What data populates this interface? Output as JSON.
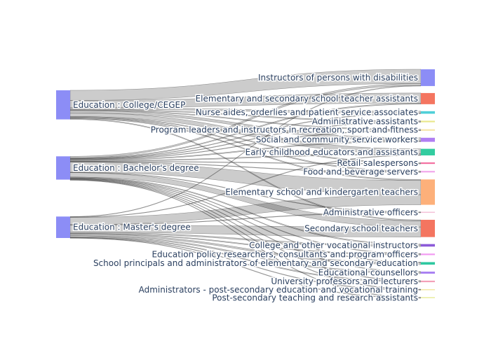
{
  "chart_data": {
    "type": "sankey",
    "link_color": "rgba(0,0,0,0.2)",
    "sources": [
      {
        "id": "src-college",
        "label": "Education : College/CEGEP",
        "color": "#8c8df6"
      },
      {
        "id": "src-bachelor",
        "label": "Education : Bachelor's degree",
        "color": "#8c8df6"
      },
      {
        "id": "src-master",
        "label": "Education : Master's degree",
        "color": "#8c8df6"
      }
    ],
    "targets": [
      {
        "id": "tgt-disabilities",
        "label": "Instructors of persons with disabilities",
        "color": "#8c8df6"
      },
      {
        "id": "tgt-teacher-assistants",
        "label": "Elementary and secondary school teacher assistants",
        "color": "#f47560"
      },
      {
        "id": "tgt-nurse-aides",
        "label": "Nurse aides, orderlies and patient service associates",
        "color": "#4fd0d8"
      },
      {
        "id": "tgt-admin-assistants",
        "label": "Administrative assistants",
        "color": "#e9e88c"
      },
      {
        "id": "tgt-program-leaders",
        "label": "Program leaders and instructors in recreation, sport and fitness",
        "color": "#f5e6a8"
      },
      {
        "id": "tgt-social-workers",
        "label": "Social and community service workers",
        "color": "#b07ff2"
      },
      {
        "id": "tgt-early-childhood",
        "label": "Early childhood educators and assistants",
        "color": "#33cca0"
      },
      {
        "id": "tgt-retail",
        "label": "Retail salespersons",
        "color": "#f46fa0"
      },
      {
        "id": "tgt-food-servers",
        "label": "Food and beverage servers",
        "color": "#f2a8ec"
      },
      {
        "id": "tgt-elementary-teachers",
        "label": "Elementary school and kindergarten teachers",
        "color": "#fdb07a"
      },
      {
        "id": "tgt-admin-officers",
        "label": "Administrative officers",
        "color": "#f4c0d8"
      },
      {
        "id": "tgt-secondary-teachers",
        "label": "Secondary school teachers",
        "color": "#f47560"
      },
      {
        "id": "tgt-vocational-instructors",
        "label": "College and other vocational instructors",
        "color": "#8c5ad8"
      },
      {
        "id": "tgt-policy-researchers",
        "label": "Education policy researchers, consultants and program officers",
        "color": "#f29af2"
      },
      {
        "id": "tgt-principals",
        "label": "School principals and administrators of elementary and secondary education",
        "color": "#2fc8a0"
      },
      {
        "id": "tgt-counsellors",
        "label": "Educational counsellors",
        "color": "#a87ff2"
      },
      {
        "id": "tgt-professors",
        "label": "University professors and lecturers",
        "color": "#f4a0b8"
      },
      {
        "id": "tgt-post-sec-admin",
        "label": "Administrators - post-secondary education and vocational training",
        "color": "#f2e8a0"
      },
      {
        "id": "tgt-post-sec-assistants",
        "label": "Post-secondary teaching and research assistants",
        "color": "#e8ec9a"
      }
    ],
    "links": [
      {
        "source": 0,
        "target": 0,
        "value": 14
      },
      {
        "source": 0,
        "target": 1,
        "value": 10
      },
      {
        "source": 0,
        "target": 2,
        "value": 2
      },
      {
        "source": 0,
        "target": 3,
        "value": 1
      },
      {
        "source": 0,
        "target": 4,
        "value": 1
      },
      {
        "source": 0,
        "target": 5,
        "value": 3
      },
      {
        "source": 0,
        "target": 6,
        "value": 5
      },
      {
        "source": 0,
        "target": 7,
        "value": 1
      },
      {
        "source": 0,
        "target": 8,
        "value": 1
      },
      {
        "source": 0,
        "target": 9,
        "value": 1
      },
      {
        "source": 0,
        "target": 11,
        "value": 1
      },
      {
        "source": 1,
        "target": 0,
        "value": 2
      },
      {
        "source": 1,
        "target": 1,
        "value": 1
      },
      {
        "source": 1,
        "target": 2,
        "value": 0.5
      },
      {
        "source": 1,
        "target": 3,
        "value": 0.5
      },
      {
        "source": 1,
        "target": 4,
        "value": 0.5
      },
      {
        "source": 1,
        "target": 5,
        "value": 1
      },
      {
        "source": 1,
        "target": 6,
        "value": 1
      },
      {
        "source": 1,
        "target": 7,
        "value": 0.5
      },
      {
        "source": 1,
        "target": 8,
        "value": 0.5
      },
      {
        "source": 1,
        "target": 9,
        "value": 14
      },
      {
        "source": 1,
        "target": 10,
        "value": 0.5
      },
      {
        "source": 1,
        "target": 11,
        "value": 6
      },
      {
        "source": 1,
        "target": 12,
        "value": 1
      },
      {
        "source": 1,
        "target": 13,
        "value": 0.5
      },
      {
        "source": 1,
        "target": 14,
        "value": 0.5
      },
      {
        "source": 1,
        "target": 15,
        "value": 0.5
      },
      {
        "source": 1,
        "target": 16,
        "value": 0.5
      },
      {
        "source": 1,
        "target": 17,
        "value": 0.5
      },
      {
        "source": 1,
        "target": 18,
        "value": 0.5
      },
      {
        "source": 2,
        "target": 0,
        "value": 0.5
      },
      {
        "source": 2,
        "target": 6,
        "value": 0.5
      },
      {
        "source": 2,
        "target": 9,
        "value": 10
      },
      {
        "source": 2,
        "target": 10,
        "value": 0.5
      },
      {
        "source": 2,
        "target": 11,
        "value": 10
      },
      {
        "source": 2,
        "target": 12,
        "value": 1.5
      },
      {
        "source": 2,
        "target": 13,
        "value": 1
      },
      {
        "source": 2,
        "target": 14,
        "value": 2
      },
      {
        "source": 2,
        "target": 15,
        "value": 1.5
      },
      {
        "source": 2,
        "target": 16,
        "value": 1
      },
      {
        "source": 2,
        "target": 17,
        "value": 0.5
      },
      {
        "source": 2,
        "target": 18,
        "value": 0.5
      }
    ]
  }
}
